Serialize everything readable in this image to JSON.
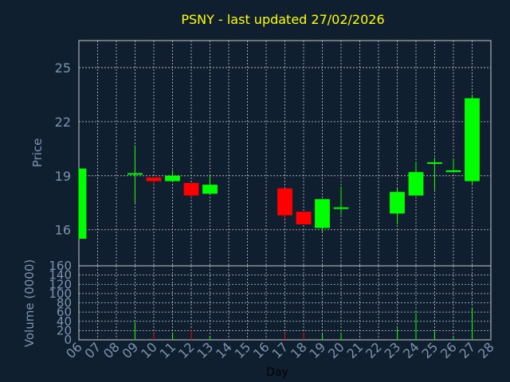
{
  "chart_data": {
    "type": "candlestick",
    "title": "PSNY - last updated 27/02/2026",
    "xlabel": "Day",
    "price_axis": {
      "ylabel": "Price",
      "ylim": [
        14,
        26.5
      ],
      "ticks": [
        "16",
        "19",
        "22",
        "25"
      ]
    },
    "volume_axis": {
      "ylabel": "Volume (0000)",
      "ylim": [
        0,
        160
      ],
      "ticks": [
        "0",
        "20",
        "40",
        "60",
        "80",
        "100",
        "120",
        "140",
        "160"
      ]
    },
    "grid": true,
    "categories": [
      "06",
      "07",
      "08",
      "09",
      "10",
      "11",
      "12",
      "13",
      "14",
      "15",
      "16",
      "17",
      "18",
      "19",
      "20",
      "21",
      "22",
      "23",
      "24",
      "25",
      "26",
      "27",
      "28"
    ],
    "candles": [
      {
        "day": "06",
        "open": 15.5,
        "close": 19.4,
        "high": 19.4,
        "low": 15.5,
        "volume": 0
      },
      {
        "day": "09",
        "open": 19.1,
        "close": 19.1,
        "high": 20.7,
        "low": 17.5,
        "volume": 38
      },
      {
        "day": "10",
        "open": 18.9,
        "close": 18.7,
        "high": 18.9,
        "low": 18.5,
        "volume": 14
      },
      {
        "day": "11",
        "open": 18.7,
        "close": 19.0,
        "high": 19.3,
        "low": 18.7,
        "volume": 16
      },
      {
        "day": "12",
        "open": 18.6,
        "close": 17.9,
        "high": 18.6,
        "low": 17.8,
        "volume": 22
      },
      {
        "day": "13",
        "open": 18.0,
        "close": 18.5,
        "high": 19.0,
        "low": 18.0,
        "volume": 8
      },
      {
        "day": "17",
        "open": 18.3,
        "close": 16.8,
        "high": 18.3,
        "low": 16.6,
        "volume": 14
      },
      {
        "day": "18",
        "open": 17.0,
        "close": 16.3,
        "high": 17.0,
        "low": 16.3,
        "volume": 15
      },
      {
        "day": "19",
        "open": 16.1,
        "close": 17.7,
        "high": 17.7,
        "low": 15.9,
        "volume": 12
      },
      {
        "day": "20",
        "open": 17.2,
        "close": 17.2,
        "high": 18.4,
        "low": 16.8,
        "volume": 14
      },
      {
        "day": "23",
        "open": 16.9,
        "close": 18.1,
        "high": 18.3,
        "low": 16.3,
        "volume": 25
      },
      {
        "day": "24",
        "open": 17.9,
        "close": 19.2,
        "high": 19.8,
        "low": 17.9,
        "volume": 58
      },
      {
        "day": "25",
        "open": 19.7,
        "close": 19.7,
        "high": 20.0,
        "low": 18.2,
        "volume": 18
      },
      {
        "day": "26",
        "open": 19.2,
        "close": 19.3,
        "high": 19.9,
        "low": 19.2,
        "volume": 6
      },
      {
        "day": "27",
        "open": 18.7,
        "close": 23.3,
        "high": 23.5,
        "low": 18.5,
        "volume": 70
      }
    ]
  },
  "colors": {
    "background": "#0f1f30",
    "up": "#00ff00",
    "down": "#ff0000",
    "title": "#ffff00",
    "axis_text": "#7d93ad",
    "grid": "#c8c8c8"
  }
}
